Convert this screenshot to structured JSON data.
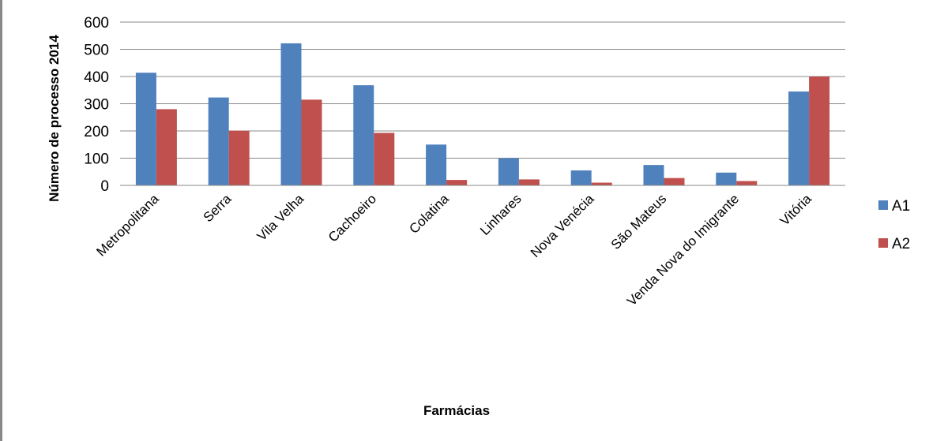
{
  "chart_data": {
    "type": "bar",
    "title": "",
    "xlabel": "Farmácias",
    "ylabel": "Número de processo 2014",
    "categories": [
      "Metropolitana",
      "Serra",
      "Vila Velha",
      "Cachoeiro",
      "Colatina",
      "Linhares",
      "Nova Venécia",
      "São Mateus",
      "Venda Nova do Imigrante",
      "Vitória"
    ],
    "series": [
      {
        "name": "A1",
        "color": "#4F81BD",
        "values": [
          414,
          323,
          522,
          368,
          150,
          100,
          55,
          75,
          47,
          345
        ]
      },
      {
        "name": "A2",
        "color": "#C0504D",
        "values": [
          280,
          201,
          315,
          193,
          20,
          22,
          10,
          27,
          16,
          400
        ]
      }
    ],
    "ylim": [
      0,
      600
    ],
    "yticks": [
      "0",
      "100",
      "200",
      "300",
      "400",
      "500",
      "600"
    ],
    "grid": true,
    "legend_position": "right"
  }
}
